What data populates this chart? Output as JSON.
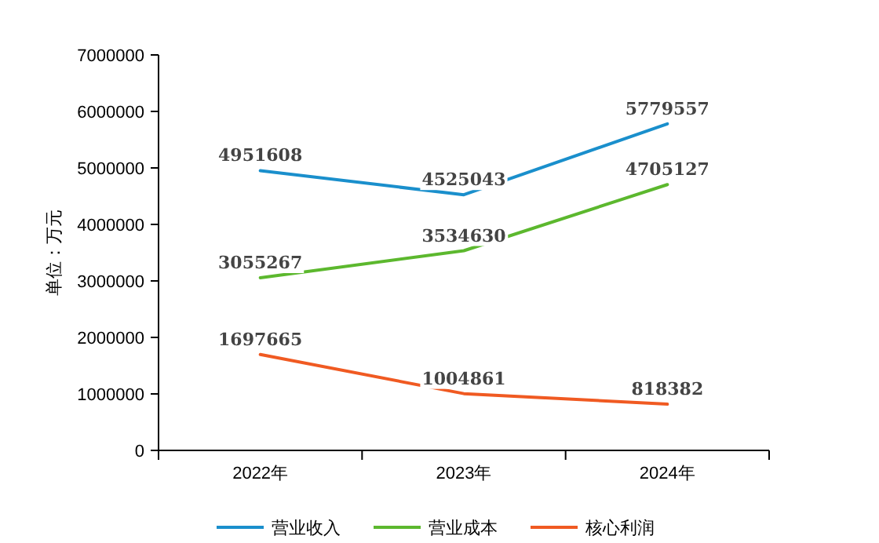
{
  "chart_data": {
    "type": "line",
    "ylabel": "单位：万元",
    "categories": [
      "2022年",
      "2023年",
      "2024年"
    ],
    "series": [
      {
        "name": "营业收入",
        "color": "#1a8fcc",
        "values": [
          4951608,
          4525043,
          5779557
        ]
      },
      {
        "name": "营业成本",
        "color": "#5cb82e",
        "values": [
          3055267,
          3534630,
          4705127
        ]
      },
      {
        "name": "核心利润",
        "color": "#f05a22",
        "values": [
          1697665,
          1004861,
          818382
        ]
      }
    ],
    "ylim": [
      0,
      7000000
    ],
    "yticks": [
      0,
      1000000,
      2000000,
      3000000,
      4000000,
      5000000,
      6000000,
      7000000
    ],
    "data_labels": true,
    "legend": "bottom",
    "grid": false,
    "marker": "none",
    "line_style": "solid"
  }
}
